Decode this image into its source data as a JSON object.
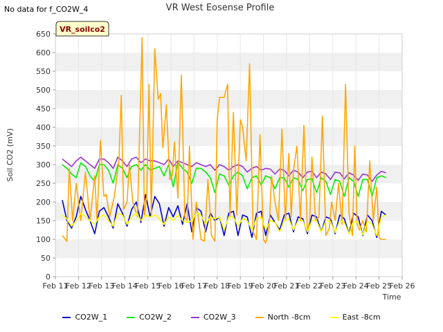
{
  "notice": "No data for f_CO2W_4",
  "badge": "VR_soilco2",
  "chart_data": {
    "type": "line",
    "title": "VR West Eosense Profile",
    "xlabel": "Time",
    "ylabel": "Soil CO2 (mV)",
    "ylim": [
      0,
      650
    ],
    "yticks": [
      0,
      50,
      100,
      150,
      200,
      250,
      300,
      350,
      400,
      450,
      500,
      550,
      600,
      650
    ],
    "xlim": [
      11,
      26
    ],
    "xticks": [
      11,
      12,
      13,
      14,
      15,
      16,
      17,
      18,
      19,
      20,
      21,
      22,
      23,
      24,
      25,
      26
    ],
    "xtick_labels": [
      "Feb 11",
      "Feb 12",
      "Feb 13",
      "Feb 14",
      "Feb 15",
      "Feb 16",
      "Feb 17",
      "Feb 18",
      "Feb 19",
      "Feb 20",
      "Feb 21",
      "Feb 22",
      "Feb 23",
      "Feb 24",
      "Feb 25",
      "Feb 26"
    ],
    "series": [
      {
        "name": "CO2W_1",
        "color": "#0000cc",
        "x": [
          11.3,
          11.5,
          11.7,
          11.9,
          12.1,
          12.3,
          12.5,
          12.7,
          12.9,
          13.1,
          13.3,
          13.5,
          13.7,
          13.9,
          14.1,
          14.3,
          14.5,
          14.7,
          14.9,
          15.1,
          15.3,
          15.5,
          15.7,
          15.9,
          16.1,
          16.3,
          16.5,
          16.7,
          16.9,
          17.1,
          17.3,
          17.5,
          17.7,
          17.9,
          18.1,
          18.3,
          18.5,
          18.7,
          18.9,
          19.1,
          19.3,
          19.5,
          19.7,
          19.9,
          20.1,
          20.3,
          20.5,
          20.7,
          20.9,
          21.1,
          21.3,
          21.5,
          21.7,
          21.9,
          22.1,
          22.3,
          22.5,
          22.7,
          22.9,
          23.1,
          23.3,
          23.5,
          23.7,
          23.9,
          24.1,
          24.3,
          24.5,
          24.7,
          24.9,
          25.1,
          25.3
        ],
        "y": [
          205,
          150,
          130,
          160,
          215,
          180,
          150,
          115,
          175,
          185,
          160,
          130,
          195,
          170,
          135,
          180,
          200,
          145,
          220,
          160,
          215,
          195,
          135,
          185,
          160,
          190,
          140,
          195,
          120,
          185,
          175,
          120,
          170,
          150,
          160,
          110,
          170,
          175,
          110,
          165,
          160,
          105,
          170,
          175,
          110,
          165,
          145,
          125,
          165,
          170,
          120,
          160,
          155,
          115,
          165,
          160,
          120,
          160,
          155,
          115,
          165,
          155,
          115,
          170,
          160,
          110,
          165,
          150,
          105,
          175,
          165
        ]
      },
      {
        "name": "CO2W_2",
        "color": "#00ee00",
        "x": [
          11.3,
          11.5,
          11.7,
          11.9,
          12.1,
          12.3,
          12.5,
          12.7,
          12.9,
          13.1,
          13.3,
          13.5,
          13.7,
          13.9,
          14.1,
          14.3,
          14.5,
          14.7,
          14.9,
          15.1,
          15.3,
          15.5,
          15.7,
          15.9,
          16.1,
          16.3,
          16.5,
          16.7,
          16.9,
          17.1,
          17.3,
          17.5,
          17.7,
          17.9,
          18.1,
          18.3,
          18.5,
          18.7,
          18.9,
          19.1,
          19.3,
          19.5,
          19.7,
          19.9,
          20.1,
          20.3,
          20.5,
          20.7,
          20.9,
          21.1,
          21.3,
          21.5,
          21.7,
          21.9,
          22.1,
          22.3,
          22.5,
          22.7,
          22.9,
          23.1,
          23.3,
          23.5,
          23.7,
          23.9,
          24.1,
          24.3,
          24.5,
          24.7,
          24.9,
          25.1,
          25.3
        ],
        "y": [
          300,
          290,
          275,
          265,
          305,
          295,
          270,
          255,
          300,
          300,
          285,
          250,
          300,
          290,
          265,
          295,
          300,
          285,
          300,
          285,
          290,
          295,
          270,
          300,
          240,
          305,
          290,
          280,
          250,
          290,
          290,
          280,
          265,
          225,
          275,
          270,
          245,
          270,
          280,
          270,
          235,
          265,
          270,
          245,
          270,
          265,
          235,
          265,
          265,
          240,
          265,
          260,
          230,
          260,
          262,
          225,
          265,
          255,
          220,
          260,
          255,
          215,
          265,
          255,
          215,
          260,
          260,
          215,
          265,
          270,
          265
        ]
      },
      {
        "name": "CO2W_3",
        "color": "#9933cc",
        "x": [
          11.3,
          11.5,
          11.7,
          11.9,
          12.1,
          12.3,
          12.5,
          12.7,
          12.9,
          13.1,
          13.3,
          13.5,
          13.7,
          13.9,
          14.1,
          14.3,
          14.5,
          14.7,
          14.9,
          15.1,
          15.3,
          15.5,
          15.7,
          15.9,
          16.1,
          16.3,
          16.5,
          16.7,
          16.9,
          17.1,
          17.3,
          17.5,
          17.7,
          17.9,
          18.1,
          18.3,
          18.5,
          18.7,
          18.9,
          19.1,
          19.3,
          19.5,
          19.7,
          19.9,
          20.1,
          20.3,
          20.5,
          20.7,
          20.9,
          21.1,
          21.3,
          21.5,
          21.7,
          21.9,
          22.1,
          22.3,
          22.5,
          22.7,
          22.9,
          23.1,
          23.3,
          23.5,
          23.7,
          23.9,
          24.1,
          24.3,
          24.5,
          24.7,
          24.9,
          25.1,
          25.3
        ],
        "y": [
          315,
          305,
          295,
          310,
          320,
          310,
          300,
          290,
          315,
          315,
          305,
          290,
          320,
          310,
          295,
          315,
          320,
          305,
          315,
          310,
          310,
          305,
          300,
          315,
          295,
          310,
          305,
          300,
          295,
          305,
          300,
          295,
          300,
          285,
          300,
          295,
          285,
          295,
          300,
          295,
          280,
          290,
          295,
          285,
          290,
          288,
          275,
          288,
          285,
          270,
          285,
          280,
          265,
          280,
          282,
          265,
          280,
          275,
          260,
          280,
          278,
          262,
          278,
          272,
          258,
          275,
          272,
          255,
          272,
          282,
          278
        ]
      },
      {
        "name": "North -8cm",
        "color": "#ffa500",
        "x": [
          11.3,
          11.5,
          11.6,
          11.75,
          11.9,
          12.1,
          12.3,
          12.5,
          12.7,
          12.8,
          12.95,
          13.1,
          13.2,
          13.35,
          13.55,
          13.75,
          13.85,
          13.95,
          14.1,
          14.2,
          14.35,
          14.55,
          14.75,
          14.85,
          14.95,
          15.05,
          15.15,
          15.3,
          15.45,
          15.55,
          15.65,
          15.8,
          15.95,
          16.05,
          16.15,
          16.3,
          16.45,
          16.6,
          16.7,
          16.8,
          16.95,
          17.1,
          17.3,
          17.45,
          17.6,
          17.75,
          17.9,
          18.0,
          18.1,
          18.3,
          18.45,
          18.55,
          18.7,
          18.85,
          19.0,
          19.1,
          19.25,
          19.4,
          19.55,
          19.7,
          19.85,
          20.0,
          20.1,
          20.25,
          20.35,
          20.5,
          20.65,
          20.8,
          20.95,
          21.1,
          21.2,
          21.3,
          21.45,
          21.6,
          21.75,
          21.9,
          22.0,
          22.1,
          22.25,
          22.4,
          22.55,
          22.7,
          22.85,
          22.95,
          23.1,
          23.25,
          23.4,
          23.55,
          23.7,
          23.85,
          23.95,
          24.05,
          24.15,
          24.3,
          24.45,
          24.6,
          24.75,
          24.9,
          25.0,
          25.1,
          25.2,
          25.3
        ],
        "y": [
          110,
          95,
          290,
          150,
          250,
          150,
          280,
          150,
          270,
          150,
          365,
          215,
          220,
          160,
          215,
          310,
          485,
          180,
          200,
          300,
          200,
          160,
          640,
          160,
          215,
          515,
          165,
          610,
          475,
          490,
          345,
          460,
          260,
          270,
          360,
          210,
          540,
          160,
          150,
          350,
          100,
          200,
          100,
          95,
          260,
          110,
          95,
          420,
          480,
          480,
          515,
          160,
          440,
          165,
          420,
          400,
          310,
          570,
          120,
          100,
          380,
          100,
          90,
          130,
          270,
          200,
          150,
          395,
          150,
          330,
          160,
          285,
          350,
          150,
          405,
          120,
          150,
          320,
          150,
          160,
          430,
          110,
          130,
          200,
          150,
          250,
          140,
          515,
          170,
          110,
          350,
          140,
          125,
          150,
          120,
          310,
          150,
          240,
          105,
          100,
          100,
          100
        ]
      },
      {
        "name": "East -8cm",
        "color": "#ffff00",
        "x": [
          11.3,
          11.5,
          11.7,
          11.9,
          12.1,
          12.3,
          12.5,
          12.7,
          12.9,
          13.1,
          13.3,
          13.5,
          13.7,
          13.9,
          14.1,
          14.3,
          14.5,
          14.7,
          14.9,
          15.1,
          15.3,
          15.5,
          15.7,
          15.9,
          16.1,
          16.3,
          16.5,
          16.7,
          16.9,
          17.1,
          17.3,
          17.5,
          17.7,
          17.9,
          18.1,
          18.3,
          18.5,
          18.7,
          18.9,
          19.1,
          19.3,
          19.5,
          19.7,
          19.9,
          20.1,
          20.3,
          20.5,
          20.7,
          20.9,
          21.1,
          21.3,
          21.5,
          21.7,
          21.9,
          22.1,
          22.3,
          22.5,
          22.7,
          22.9,
          23.1,
          23.3,
          23.5,
          23.7,
          23.9,
          24.1,
          24.3,
          24.5,
          24.7,
          24.9,
          25.1,
          25.3
        ],
        "y": [
          165,
          155,
          135,
          150,
          170,
          160,
          150,
          140,
          160,
          165,
          150,
          135,
          170,
          165,
          140,
          160,
          170,
          150,
          165,
          160,
          165,
          155,
          140,
          160,
          150,
          165,
          150,
          145,
          150,
          170,
          165,
          140,
          160,
          155,
          160,
          125,
          160,
          160,
          135,
          155,
          150,
          125,
          155,
          160,
          125,
          150,
          145,
          120,
          150,
          155,
          125,
          150,
          150,
          120,
          150,
          150,
          120,
          150,
          148,
          118,
          150,
          145,
          115,
          148,
          145,
          112,
          148,
          140,
          110,
          160,
          165
        ]
      }
    ]
  }
}
